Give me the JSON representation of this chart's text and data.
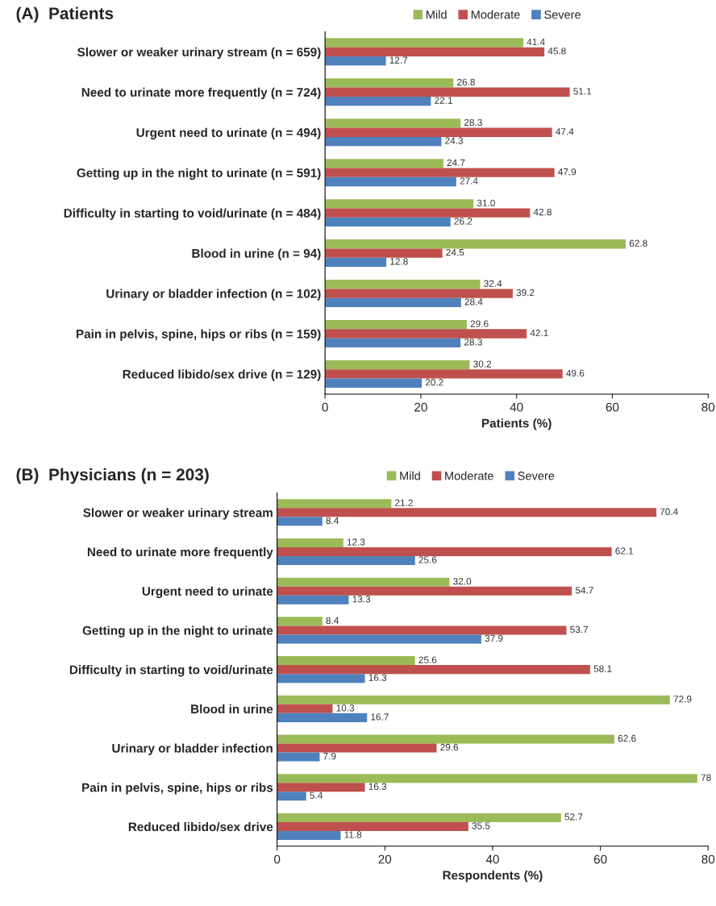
{
  "chart_data": [
    {
      "type": "bar",
      "orientation": "horizontal",
      "title": "(A)  Patients",
      "xlabel": "Patients (%)",
      "categories": [
        "Slower or weaker urinary stream (n = 659)",
        "Need to urinate more frequently (n = 724)",
        "Urgent need to urinate (n = 494)",
        "Getting up in the night to urinate (n = 591)",
        "Difficulty in starting to void/urinate (n = 484)",
        "Blood in urine (n = 94)",
        "Urinary or bladder infection (n = 102)",
        "Pain in pelvis, spine, hips or ribs (n = 159)",
        "Reduced libido/sex drive (n = 129)"
      ],
      "series": [
        {
          "name": "Mild",
          "color": "#9bbb59",
          "values": [
            41.4,
            26.8,
            28.3,
            24.7,
            31.0,
            62.8,
            32.4,
            29.6,
            30.2
          ],
          "value_labels": [
            "41.4",
            "26.8",
            "28.3",
            "24.7",
            "31.0",
            "62.8",
            "32.4",
            "29.6",
            "30.2"
          ]
        },
        {
          "name": "Moderate",
          "color": "#c0504d",
          "values": [
            45.8,
            51.1,
            47.4,
            47.9,
            42.8,
            24.5,
            39.2,
            42.1,
            49.6
          ]
        },
        {
          "name": "Severe",
          "color": "#4f81bd",
          "values": [
            12.7,
            22.1,
            24.3,
            27.4,
            26.2,
            12.8,
            28.4,
            28.3,
            20.2
          ]
        }
      ],
      "xlim": [
        0,
        80
      ],
      "xticks": [
        0,
        20,
        40,
        60,
        80
      ],
      "data_labels": true,
      "legend": "top",
      "grid": false
    },
    {
      "type": "bar",
      "orientation": "horizontal",
      "title": "(B)  Physicians (n = 203)",
      "xlabel": "Respondents (%)",
      "categories": [
        "Slower or weaker urinary stream",
        "Need to urinate more frequently",
        "Urgent need to urinate",
        "Getting up in the night to urinate",
        "Difficulty in starting to void/urinate",
        "Blood in urine",
        "Urinary or bladder infection",
        "Pain in pelvis, spine, hips or ribs",
        "Reduced libido/sex drive"
      ],
      "series": [
        {
          "name": "Mild",
          "color": "#9bbb59",
          "values": [
            21.2,
            12.3,
            32.0,
            8.4,
            25.6,
            72.9,
            62.6,
            78,
            52.7
          ],
          "value_labels": [
            "21.2",
            "12.3",
            "32.0",
            "8.4",
            "25.6",
            "72.9",
            "62.6",
            "78",
            "52.7"
          ]
        },
        {
          "name": "Moderate",
          "color": "#c0504d",
          "values": [
            70.4,
            62.1,
            54.7,
            53.7,
            58.1,
            10.3,
            29.6,
            16.3,
            35.5
          ]
        },
        {
          "name": "Severe",
          "color": "#4f81bd",
          "values": [
            8.4,
            25.6,
            13.3,
            37.9,
            16.3,
            16.7,
            7.9,
            5.4,
            11.8
          ]
        }
      ],
      "xlim": [
        0,
        80
      ],
      "xticks": [
        0,
        20,
        40,
        60,
        80
      ],
      "data_labels": true,
      "legend": "top",
      "grid": false
    }
  ]
}
